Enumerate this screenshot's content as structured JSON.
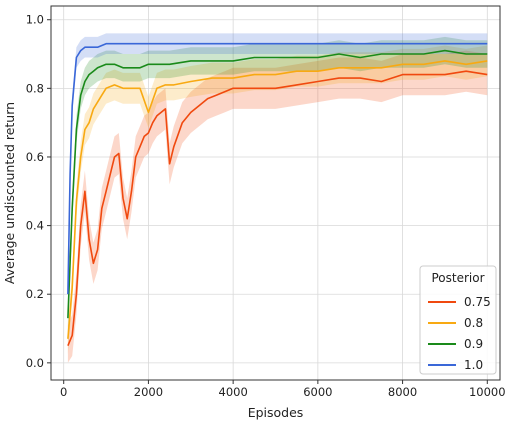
{
  "chart_data": {
    "type": "line",
    "title": "",
    "xlabel": "Episodes",
    "ylabel": "Average undiscounted return",
    "xlim": [
      -300,
      10300
    ],
    "ylim": [
      -0.05,
      1.04
    ],
    "xticks": [
      0,
      2000,
      4000,
      6000,
      8000,
      10000
    ],
    "yticks": [
      0.0,
      0.2,
      0.4,
      0.6,
      0.8,
      1.0
    ],
    "xtick_labels": [
      "0",
      "2000",
      "4000",
      "6000",
      "8000",
      "10000"
    ],
    "ytick_labels": [
      "0.0",
      "0.2",
      "0.4",
      "0.6",
      "0.8",
      "1.0"
    ],
    "grid": true,
    "legend_title": "Posterior",
    "legend_position": "lower-right",
    "series": [
      {
        "name": "0.75",
        "color": "#f0490f",
        "band_halfwidth": 0.06,
        "x": [
          100,
          200,
          300,
          400,
          500,
          600,
          700,
          800,
          900,
          1000,
          1100,
          1200,
          1300,
          1400,
          1500,
          1600,
          1700,
          1800,
          1900,
          2000,
          2100,
          2200,
          2300,
          2400,
          2500,
          2600,
          2800,
          3000,
          3200,
          3400,
          3600,
          3800,
          4000,
          4500,
          5000,
          5500,
          6000,
          6500,
          7000,
          7500,
          8000,
          8500,
          9000,
          9500,
          10000
        ],
        "y": [
          0.05,
          0.08,
          0.2,
          0.4,
          0.5,
          0.36,
          0.29,
          0.33,
          0.45,
          0.5,
          0.55,
          0.6,
          0.61,
          0.48,
          0.42,
          0.5,
          0.6,
          0.63,
          0.66,
          0.67,
          0.7,
          0.72,
          0.73,
          0.74,
          0.58,
          0.63,
          0.7,
          0.73,
          0.75,
          0.77,
          0.78,
          0.79,
          0.8,
          0.8,
          0.8,
          0.81,
          0.82,
          0.83,
          0.83,
          0.82,
          0.84,
          0.84,
          0.84,
          0.85,
          0.84
        ]
      },
      {
        "name": "0.8",
        "color": "#f8a912",
        "band_halfwidth": 0.045,
        "x": [
          100,
          200,
          300,
          400,
          500,
          600,
          700,
          800,
          900,
          1000,
          1200,
          1400,
          1600,
          1800,
          2000,
          2200,
          2400,
          2600,
          3000,
          3500,
          4000,
          4500,
          5000,
          5500,
          6000,
          6500,
          7000,
          7500,
          8000,
          8500,
          9000,
          9500,
          10000
        ],
        "y": [
          0.07,
          0.22,
          0.47,
          0.6,
          0.68,
          0.7,
          0.74,
          0.76,
          0.78,
          0.8,
          0.81,
          0.8,
          0.8,
          0.8,
          0.73,
          0.8,
          0.81,
          0.81,
          0.82,
          0.83,
          0.83,
          0.84,
          0.84,
          0.85,
          0.85,
          0.86,
          0.86,
          0.86,
          0.87,
          0.87,
          0.88,
          0.87,
          0.88
        ]
      },
      {
        "name": "0.9",
        "color": "#1a8a1a",
        "band_halfwidth": 0.04,
        "x": [
          100,
          200,
          300,
          400,
          500,
          600,
          700,
          800,
          1000,
          1200,
          1400,
          1600,
          1800,
          2000,
          2500,
          3000,
          3500,
          4000,
          4500,
          5000,
          5500,
          6000,
          6500,
          7000,
          7500,
          8000,
          8500,
          9000,
          9500,
          10000
        ],
        "y": [
          0.13,
          0.45,
          0.68,
          0.78,
          0.82,
          0.84,
          0.85,
          0.86,
          0.87,
          0.87,
          0.86,
          0.86,
          0.86,
          0.87,
          0.87,
          0.88,
          0.88,
          0.88,
          0.89,
          0.89,
          0.89,
          0.89,
          0.9,
          0.89,
          0.9,
          0.9,
          0.9,
          0.91,
          0.9,
          0.9
        ]
      },
      {
        "name": "1.0",
        "color": "#3a67d8",
        "band_halfwidth": 0.03,
        "x": [
          100,
          150,
          200,
          300,
          400,
          500,
          600,
          800,
          1000,
          1500,
          2000,
          2500,
          3000,
          4000,
          5000,
          6000,
          7000,
          8000,
          9000,
          10000
        ],
        "y": [
          0.2,
          0.55,
          0.75,
          0.89,
          0.91,
          0.92,
          0.92,
          0.92,
          0.93,
          0.93,
          0.93,
          0.93,
          0.93,
          0.93,
          0.93,
          0.93,
          0.93,
          0.93,
          0.93,
          0.93
        ]
      }
    ]
  }
}
